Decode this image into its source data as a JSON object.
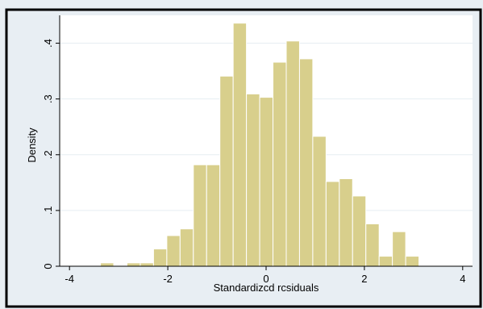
{
  "colors": {
    "outer_bg": "#e8eef3",
    "plot_bg": "#ffffff",
    "bar_fill": "#d8cf8c",
    "bar_stroke": "#ffffff",
    "grid": "#e6eef2",
    "border": "#000000",
    "text": "#000000"
  },
  "chart_data": {
    "type": "bar",
    "subtype": "histogram",
    "title": "",
    "xlabel": "Standardizcd rcsiduals",
    "ylabel": "Density",
    "xlim": [
      -4.2,
      4.2
    ],
    "ylim": [
      0,
      0.45
    ],
    "x_ticks": [
      -4,
      -2,
      0,
      2,
      4
    ],
    "x_tick_labels": [
      "-4",
      "-2",
      "0",
      "2",
      "4"
    ],
    "y_ticks": [
      0,
      0.1,
      0.2,
      0.3,
      0.4
    ],
    "y_tick_labels": [
      "0",
      ".1",
      ".2",
      ".3",
      ".4"
    ],
    "grid": "horizontal",
    "legend": "none",
    "bins": [
      {
        "x0": -3.37,
        "x1": -3.1,
        "density": 0.006
      },
      {
        "x0": -2.83,
        "x1": -2.56,
        "density": 0.006
      },
      {
        "x0": -2.56,
        "x1": -2.29,
        "density": 0.006
      },
      {
        "x0": -2.29,
        "x1": -2.02,
        "density": 0.031
      },
      {
        "x0": -2.02,
        "x1": -1.75,
        "density": 0.055
      },
      {
        "x0": -1.75,
        "x1": -1.48,
        "density": 0.067
      },
      {
        "x0": -1.48,
        "x1": -1.21,
        "density": 0.182
      },
      {
        "x0": -1.21,
        "x1": -0.94,
        "density": 0.182
      },
      {
        "x0": -0.94,
        "x1": -0.67,
        "density": 0.341
      },
      {
        "x0": -0.67,
        "x1": -0.4,
        "density": 0.436
      },
      {
        "x0": -0.4,
        "x1": -0.13,
        "density": 0.309
      },
      {
        "x0": -0.13,
        "x1": 0.14,
        "density": 0.303
      },
      {
        "x0": 0.14,
        "x1": 0.41,
        "density": 0.366
      },
      {
        "x0": 0.41,
        "x1": 0.68,
        "density": 0.404
      },
      {
        "x0": 0.68,
        "x1": 0.95,
        "density": 0.372
      },
      {
        "x0": 0.95,
        "x1": 1.22,
        "density": 0.233
      },
      {
        "x0": 1.22,
        "x1": 1.49,
        "density": 0.152
      },
      {
        "x0": 1.49,
        "x1": 1.76,
        "density": 0.157
      },
      {
        "x0": 1.76,
        "x1": 2.03,
        "density": 0.126
      },
      {
        "x0": 2.03,
        "x1": 2.3,
        "density": 0.076
      },
      {
        "x0": 2.3,
        "x1": 2.57,
        "density": 0.018
      },
      {
        "x0": 2.57,
        "x1": 2.84,
        "density": 0.062
      },
      {
        "x0": 2.84,
        "x1": 3.11,
        "density": 0.018
      }
    ]
  }
}
